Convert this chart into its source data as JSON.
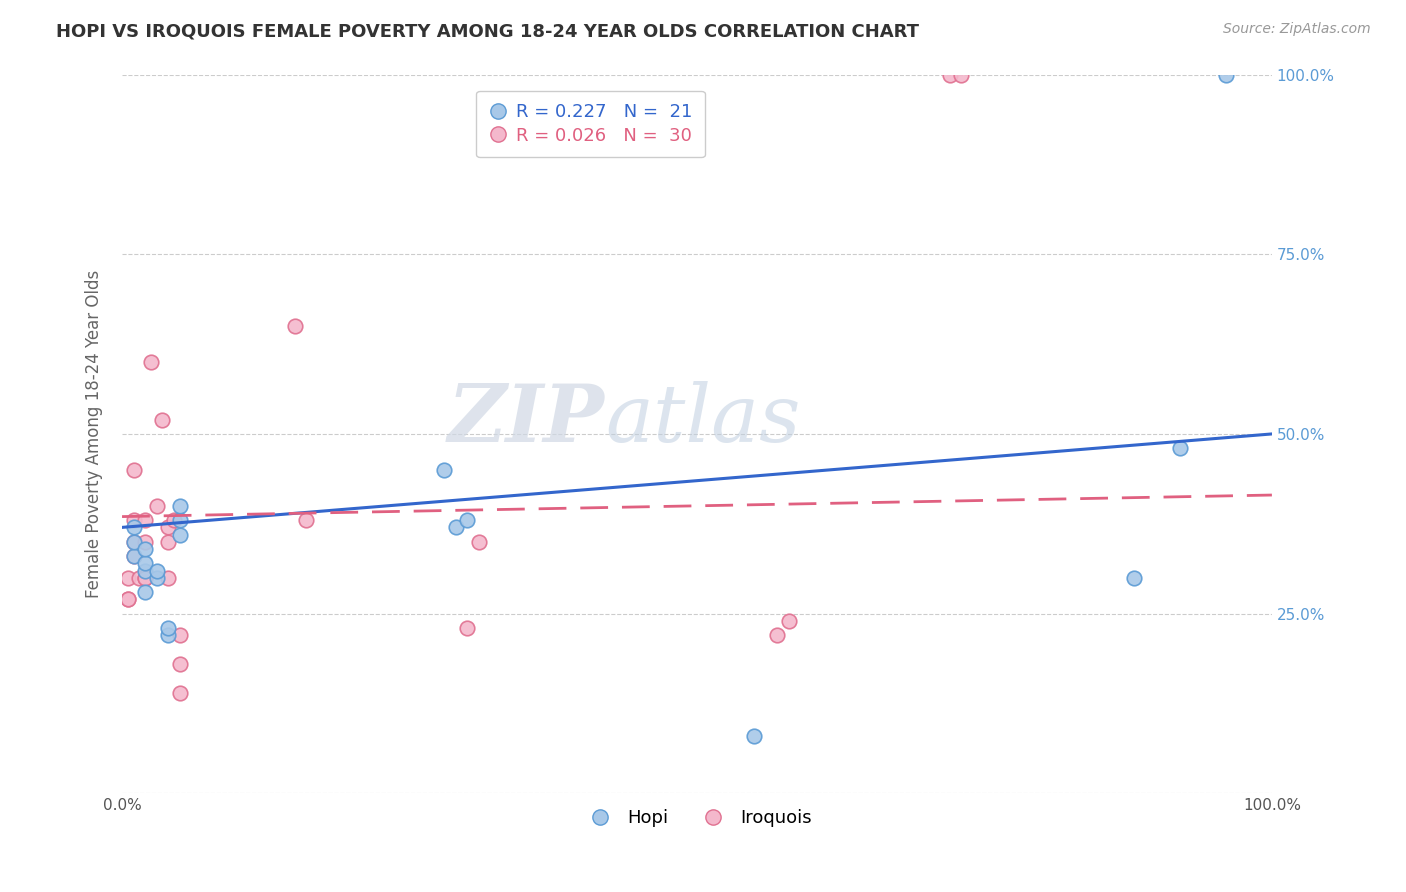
{
  "title": "HOPI VS IROQUOIS FEMALE POVERTY AMONG 18-24 YEAR OLDS CORRELATION CHART",
  "source": "Source: ZipAtlas.com",
  "ylabel": "Female Poverty Among 18-24 Year Olds",
  "hopi_label": "Hopi",
  "iroquois_label": "Iroquois",
  "hopi_R": "0.227",
  "hopi_N": "21",
  "iroquois_R": "0.026",
  "iroquois_N": "30",
  "hopi_color": "#a8c8e8",
  "iroquois_color": "#f4b8cc",
  "hopi_edge_color": "#5b9bd5",
  "iroquois_edge_color": "#e07090",
  "hopi_line_color": "#3366cc",
  "iroquois_line_color": "#e06080",
  "hopi_x": [
    0.01,
    0.01,
    0.01,
    0.02,
    0.02,
    0.02,
    0.02,
    0.03,
    0.03,
    0.04,
    0.04,
    0.05,
    0.05,
    0.05,
    0.28,
    0.29,
    0.3,
    0.55,
    0.88,
    0.92,
    0.96
  ],
  "hopi_y": [
    0.33,
    0.35,
    0.37,
    0.28,
    0.31,
    0.32,
    0.34,
    0.3,
    0.31,
    0.22,
    0.23,
    0.36,
    0.38,
    0.4,
    0.45,
    0.37,
    0.38,
    0.08,
    0.3,
    0.48,
    1.0
  ],
  "iroquois_x": [
    0.005,
    0.005,
    0.005,
    0.01,
    0.01,
    0.01,
    0.01,
    0.015,
    0.02,
    0.02,
    0.02,
    0.02,
    0.025,
    0.03,
    0.035,
    0.04,
    0.04,
    0.04,
    0.045,
    0.05,
    0.05,
    0.05,
    0.15,
    0.16,
    0.3,
    0.31,
    0.57,
    0.58,
    0.72,
    0.73
  ],
  "iroquois_y": [
    0.27,
    0.27,
    0.3,
    0.33,
    0.35,
    0.38,
    0.45,
    0.3,
    0.3,
    0.3,
    0.35,
    0.38,
    0.6,
    0.4,
    0.52,
    0.3,
    0.35,
    0.37,
    0.38,
    0.14,
    0.18,
    0.22,
    0.65,
    0.38,
    0.23,
    0.35,
    0.22,
    0.24,
    1.0,
    1.0
  ],
  "hopi_trend_x0": 0.0,
  "hopi_trend_y0": 0.37,
  "hopi_trend_x1": 1.0,
  "hopi_trend_y1": 0.5,
  "iroquois_trend_x0": 0.0,
  "iroquois_trend_y0": 0.385,
  "iroquois_trend_x1": 1.0,
  "iroquois_trend_y1": 0.415,
  "xlim": [
    0.0,
    1.0
  ],
  "ylim": [
    0.0,
    1.0
  ],
  "yticks": [
    0.0,
    0.25,
    0.5,
    0.75,
    1.0
  ],
  "right_ytick_labels": [
    "",
    "25.0%",
    "50.0%",
    "75.0%",
    "100.0%"
  ],
  "xticks": [
    0.0,
    0.25,
    0.5,
    0.75,
    1.0
  ],
  "xtick_labels": [
    "0.0%",
    "",
    "",
    "",
    "100.0%"
  ],
  "watermark_zip": "ZIP",
  "watermark_atlas": "atlas",
  "marker_size": 110,
  "background_color": "#ffffff",
  "grid_color": "#cccccc",
  "legend_hopi_text": "R = 0.227   N =  21",
  "legend_iroquois_text": "R = 0.026   N =  30"
}
